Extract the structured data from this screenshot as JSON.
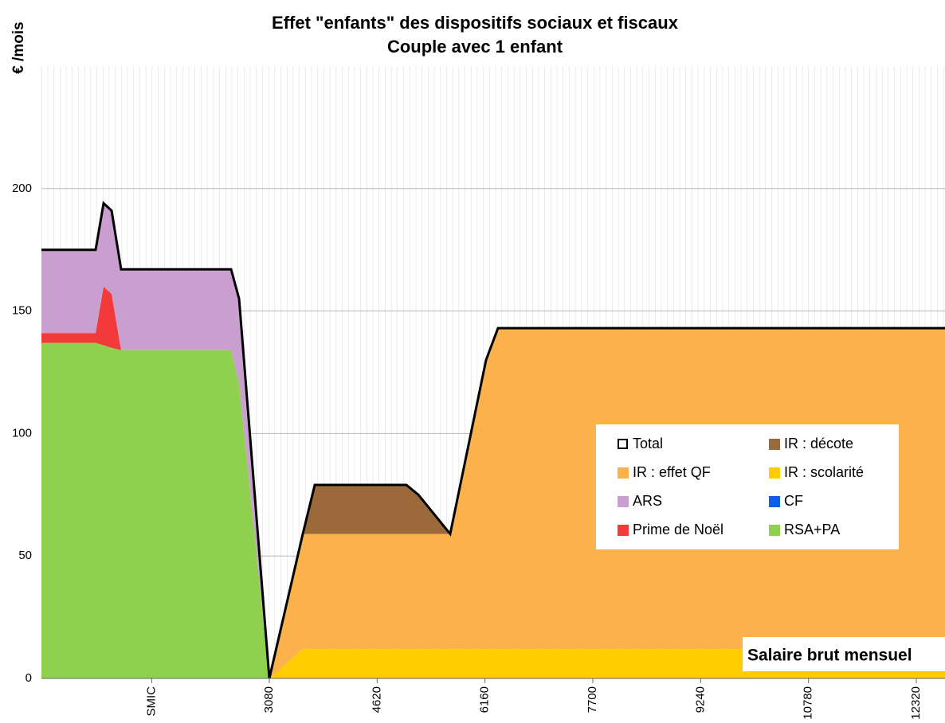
{
  "chart_data": {
    "type": "area",
    "title": "Effet \"enfants\" des dispositifs sociaux et fiscaux",
    "subtitle": "Couple avec 1 enfant",
    "y_label": "€ /mois",
    "annotation": "Salaire brut mensuel",
    "stacked": true,
    "grid": true,
    "x": [
      -175,
      599,
      713,
      827,
      963,
      2534,
      2648,
      3080,
      3558,
      3729,
      5037,
      5208,
      5663,
      6175,
      6346,
      12730
    ],
    "xlim": [
      -175,
      12730
    ],
    "xticks": [
      {
        "value": 1400,
        "label": "SMIC"
      },
      3080,
      4620,
      6160,
      7700,
      9240,
      10780,
      12320
    ],
    "ylim": [
      0,
      250
    ],
    "yticks": [
      0,
      50,
      100,
      150,
      200
    ],
    "series": [
      {
        "name": "Total",
        "type": "line",
        "color": "#000000",
        "values": [
          175,
          175,
          194,
          191,
          167,
          167,
          155,
          0,
          59,
          79,
          79,
          75,
          59,
          130,
          143,
          143
        ]
      },
      {
        "name": "IR : décote",
        "color": "#9c6a3a",
        "values": [
          0,
          0,
          0,
          0,
          0,
          0,
          0,
          0,
          0,
          20,
          20,
          16,
          0,
          0,
          0,
          0
        ]
      },
      {
        "name": "IR : effet QF",
        "color": "#fbb24c",
        "values": [
          0,
          0,
          0,
          0,
          0,
          0,
          0,
          0,
          47,
          47,
          47,
          47,
          47,
          118,
          131,
          131
        ]
      },
      {
        "name": "IR : scolarité",
        "color": "#ffcc00",
        "values": [
          0,
          0,
          0,
          0,
          0,
          0,
          0,
          0,
          12,
          12,
          12,
          12,
          12,
          12,
          12,
          12
        ]
      },
      {
        "name": "ARS",
        "color": "#c99fd0",
        "values": [
          34,
          34,
          34,
          34,
          33,
          33,
          35,
          0,
          0,
          0,
          0,
          0,
          0,
          0,
          0,
          0
        ]
      },
      {
        "name": "CF",
        "color": "#0a5ee8",
        "values": [
          0,
          0,
          0,
          0,
          0,
          0,
          0,
          0,
          0,
          0,
          0,
          0,
          0,
          0,
          0,
          0
        ]
      },
      {
        "name": "Prime de Noël",
        "color": "#f23a3a",
        "values": [
          4,
          4,
          24,
          22,
          0,
          0,
          0,
          0,
          0,
          0,
          0,
          0,
          0,
          0,
          0,
          0
        ]
      },
      {
        "name": "RSA+PA",
        "color": "#8fd14f",
        "values": [
          137,
          137,
          136,
          135,
          134,
          134,
          120,
          0,
          0,
          0,
          0,
          0,
          0,
          0,
          0,
          0
        ]
      }
    ]
  }
}
